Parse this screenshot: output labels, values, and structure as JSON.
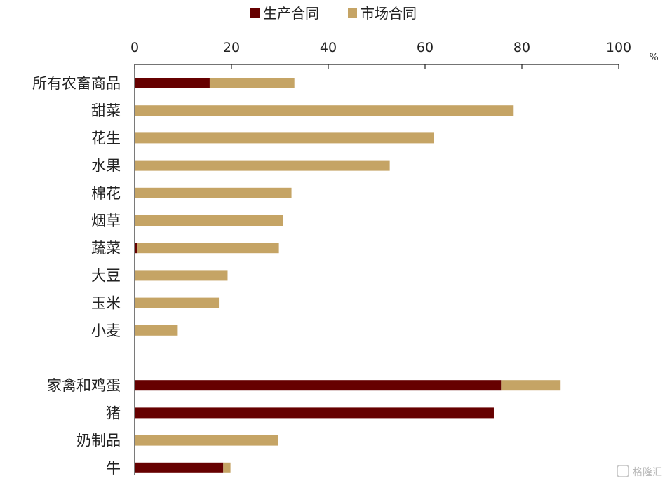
{
  "chart_data": {
    "type": "bar",
    "orientation": "horizontal",
    "stacked": true,
    "title": "",
    "xlabel": "",
    "ylabel": "",
    "unit": "%",
    "xlim": [
      0,
      100
    ],
    "xticks": [
      0,
      20,
      40,
      60,
      80,
      100
    ],
    "grid": false,
    "legend_position": "top",
    "categories": [
      "所有农畜商品",
      "甜菜",
      "花生",
      "水果",
      "棉花",
      "烟草",
      "蔬菜",
      "大豆",
      "玉米",
      "小麦",
      "",
      "家禽和鸡蛋",
      "猪",
      "奶制品",
      "牛"
    ],
    "series": [
      {
        "name": "生产合同",
        "color": "#660000",
        "values": [
          15.5,
          0,
          0,
          0,
          0,
          0,
          0.6,
          0,
          0,
          0,
          null,
          75.7,
          74.2,
          0,
          18.3
        ]
      },
      {
        "name": "市场合同",
        "color": "#C5A465",
        "values": [
          17.5,
          78.3,
          61.8,
          52.7,
          32.4,
          30.7,
          29.2,
          19.2,
          17.4,
          8.9,
          null,
          12.3,
          0,
          29.6,
          1.5
        ]
      }
    ]
  },
  "watermark": "格隆汇"
}
